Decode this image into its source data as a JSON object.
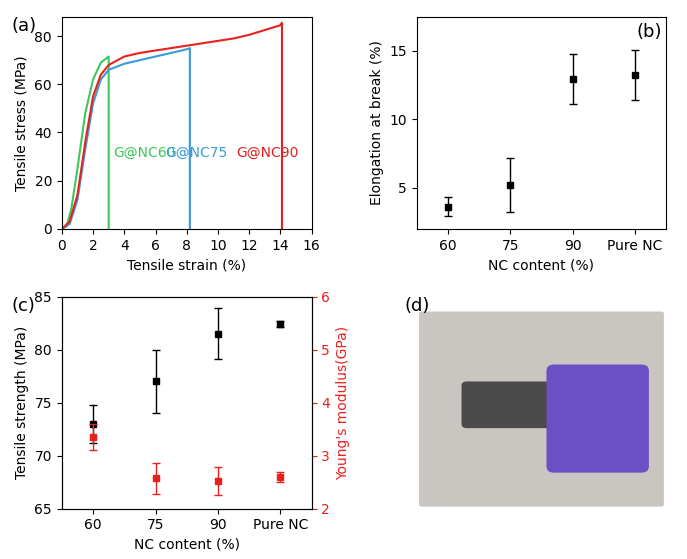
{
  "chart_data": [
    {
      "type": "line",
      "label": "(a)",
      "x_label": "Tensile strain (%)",
      "y_label": "Tensile stress (MPa)",
      "xlim": [
        0,
        16
      ],
      "xticks": [
        0,
        2,
        4,
        6,
        8,
        10,
        12,
        14,
        16
      ],
      "ylim": [
        0,
        88
      ],
      "yticks": [
        0,
        20,
        40,
        60,
        80
      ],
      "series": [
        {
          "name": "G@NC60",
          "color": "#3cc85a",
          "x": [
            0,
            0.3,
            0.6,
            1.0,
            1.5,
            2.0,
            2.5,
            3.0,
            3.0
          ],
          "values": [
            0,
            1,
            8,
            25,
            48,
            62,
            69,
            71.5,
            0
          ]
        },
        {
          "name": "G@NC75",
          "color": "#3a9bd9",
          "x": [
            0,
            0.5,
            1.0,
            1.5,
            2.0,
            2.5,
            3.0,
            4.0,
            5.0,
            6.0,
            7.0,
            8.0,
            8.2,
            8.2
          ],
          "values": [
            0,
            2,
            12,
            33,
            52,
            62,
            66,
            68.5,
            70,
            71.5,
            73,
            74.5,
            75,
            0
          ]
        },
        {
          "name": "G@NC90",
          "color": "#e8211f",
          "x": [
            0,
            0.5,
            1.0,
            1.5,
            2.0,
            2.5,
            3.0,
            4.0,
            5.0,
            6.0,
            7.0,
            8.0,
            9.0,
            10.0,
            11.0,
            12.0,
            13.0,
            14.0,
            14.1,
            14.1
          ],
          "values": [
            0,
            3,
            14,
            36,
            55,
            64,
            68,
            71.5,
            73,
            74,
            75,
            76,
            77,
            78,
            79,
            80.5,
            82.5,
            84.5,
            85.5,
            0
          ]
        }
      ]
    },
    {
      "type": "scatter",
      "label": "(b)",
      "x_label": "NC content (%)",
      "y_label": "Elongation at break (%)",
      "categories": [
        "60",
        "75",
        "90",
        "Pure NC"
      ],
      "ylim": [
        2,
        17.5
      ],
      "yticks": [
        5,
        10,
        15
      ],
      "series": [
        {
          "name": "Elongation at break",
          "color": "#000000",
          "marker": "square",
          "values": [
            3.6,
            5.2,
            12.95,
            13.25
          ],
          "errors": [
            0.7,
            2.0,
            1.85,
            1.85
          ]
        }
      ]
    },
    {
      "type": "scatter",
      "label": "(c)",
      "x_label": "NC content (%)",
      "y_label": "Tensile strength (MPa)",
      "y2_label": "Young's modulus(GPa)",
      "categories": [
        "60",
        "75",
        "90",
        "Pure NC"
      ],
      "ylim": [
        65,
        85
      ],
      "yticks": [
        65,
        70,
        75,
        80,
        85
      ],
      "y2lim": [
        2,
        6
      ],
      "y2ticks": [
        2,
        3,
        4,
        5,
        6
      ],
      "series": [
        {
          "name": "Tensile strength (MPa)",
          "color": "#000000",
          "marker": "square",
          "values": [
            73,
            77,
            81.5,
            82.4
          ],
          "errors": [
            1.8,
            3.0,
            2.4,
            0.3
          ]
        },
        {
          "name": "Young's modulus(GPa)",
          "color": "#e8211f",
          "marker": "square",
          "axis": "y2",
          "values": [
            3.35,
            2.57,
            2.52,
            2.6
          ],
          "errors": [
            0.25,
            0.3,
            0.27,
            0.1
          ]
        }
      ]
    },
    {
      "type": "image",
      "label": "(d)"
    }
  ]
}
